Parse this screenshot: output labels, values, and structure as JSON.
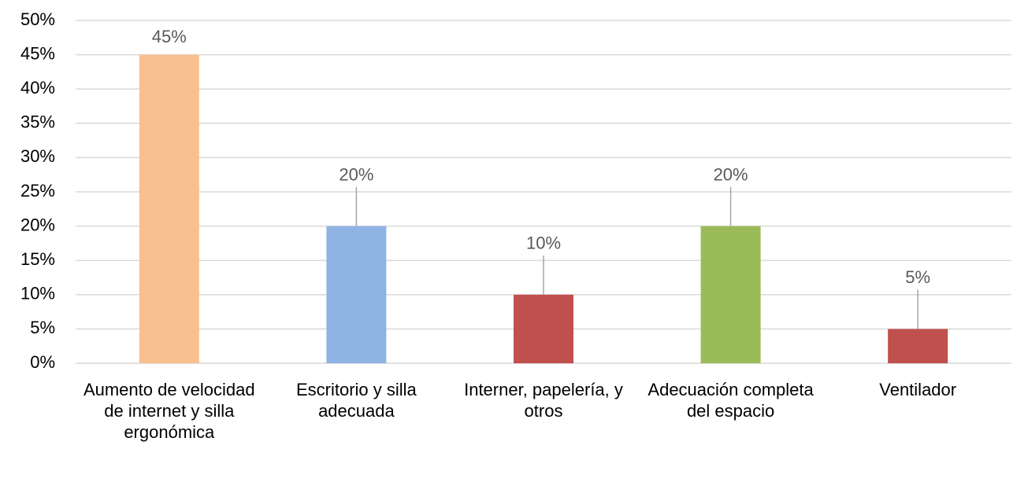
{
  "chart_data": {
    "type": "bar",
    "categories": [
      "Aumento de velocidad de internet y silla ergonómica",
      "Escritorio y silla adecuada",
      "Interner, papelería, y otros",
      "Adecuación completa del espacio",
      "Ventilador"
    ],
    "values": [
      45,
      20,
      10,
      20,
      5
    ],
    "value_labels": [
      "45%",
      "20%",
      "10%",
      "20%",
      "5%"
    ],
    "colors": [
      "#f9c08f",
      "#8fb4e3",
      "#c0504d",
      "#9bbb59",
      "#c0504d"
    ],
    "ylim": [
      0,
      50
    ],
    "yticks": [
      {
        "value": 0,
        "label": "0%"
      },
      {
        "value": 5,
        "label": "5%"
      },
      {
        "value": 10,
        "label": "10%"
      },
      {
        "value": 15,
        "label": "15%"
      },
      {
        "value": 20,
        "label": "20%"
      },
      {
        "value": 25,
        "label": "25%"
      },
      {
        "value": 30,
        "label": "30%"
      },
      {
        "value": 35,
        "label": "35%"
      },
      {
        "value": 40,
        "label": "40%"
      },
      {
        "value": 45,
        "label": "45%"
      },
      {
        "value": 50,
        "label": "50%"
      }
    ],
    "grid": true
  }
}
